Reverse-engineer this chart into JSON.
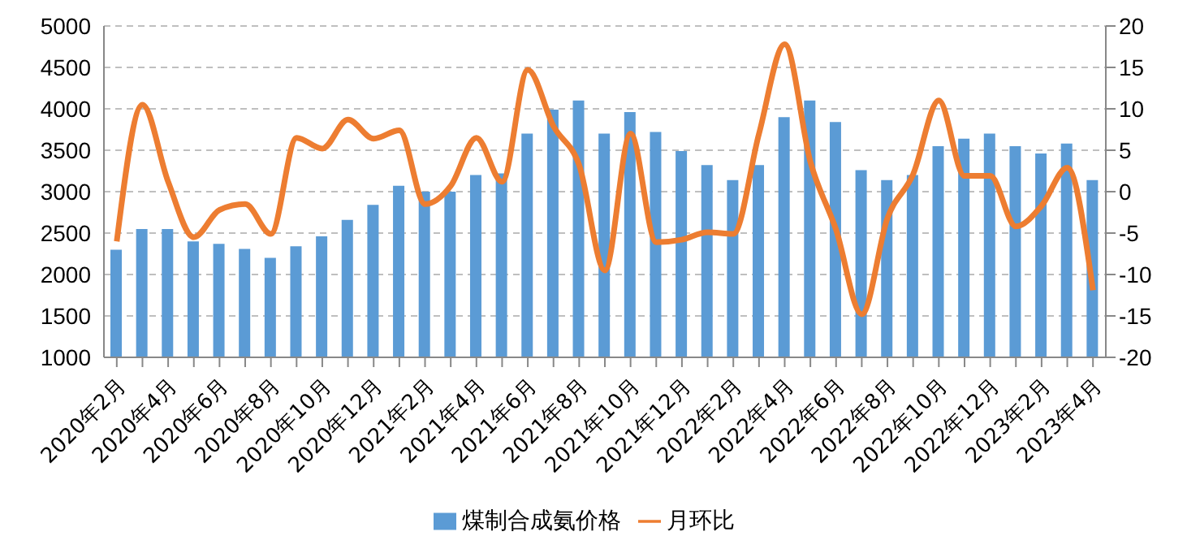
{
  "chart_data": {
    "type": "bar",
    "categories": [
      "2020年2月",
      null,
      "2020年4月",
      null,
      "2020年6月",
      null,
      "2020年8月",
      null,
      "2020年10月",
      null,
      "2020年12月",
      null,
      "2021年2月",
      null,
      "2021年4月",
      null,
      "2021年6月",
      null,
      "2021年8月",
      null,
      "2021年10月",
      null,
      "2021年12月",
      null,
      "2022年2月",
      null,
      "2022年4月",
      null,
      "2022年6月",
      null,
      "2022年8月",
      null,
      "2022年10月",
      null,
      "2022年12月",
      null,
      "2023年2月",
      null,
      "2023年4月"
    ],
    "series": [
      {
        "name": "煤制合成氨价格",
        "color": "#5b9bd5",
        "values": [
          2300,
          2550,
          2550,
          2400,
          2370,
          2310,
          2200,
          2340,
          2460,
          2660,
          2840,
          3070,
          3000,
          3000,
          3200,
          3220,
          3700,
          3990,
          4100,
          3700,
          3960,
          3720,
          3490,
          3320,
          3140,
          3320,
          3900,
          4100,
          3840,
          3260,
          3140,
          3200,
          3550,
          3640,
          3700,
          3550,
          3460,
          3580,
          3140
        ]
      },
      {
        "name": "月环比",
        "type": "line",
        "axis": "y2",
        "color": "#ed7d31",
        "values": [
          -6,
          10.5,
          1.2,
          -5.5,
          -2.2,
          -1.5,
          -5.1,
          6.5,
          5.2,
          8.7,
          6.4,
          7.4,
          -1.5,
          0.7,
          6.5,
          1.2,
          14.7,
          7.9,
          3.2,
          -9.5,
          7,
          -6.1,
          -5.8,
          -4.9,
          -5.1,
          7,
          17.8,
          3.6,
          -4.6,
          -14.8,
          -3.2,
          2.1,
          11,
          1.9,
          1.9,
          -4.2,
          -1.7,
          2.9,
          -11.9
        ]
      }
    ],
    "ylim": [
      1000,
      5000
    ],
    "yticks": [
      1000,
      1500,
      2000,
      2500,
      3000,
      3500,
      4000,
      4500,
      5000
    ],
    "y2lim": [
      -20,
      20
    ],
    "y2ticks": [
      -20,
      -15,
      -10,
      -5,
      0,
      5,
      10,
      15,
      20
    ],
    "grid": "y",
    "legend": "bottom"
  }
}
